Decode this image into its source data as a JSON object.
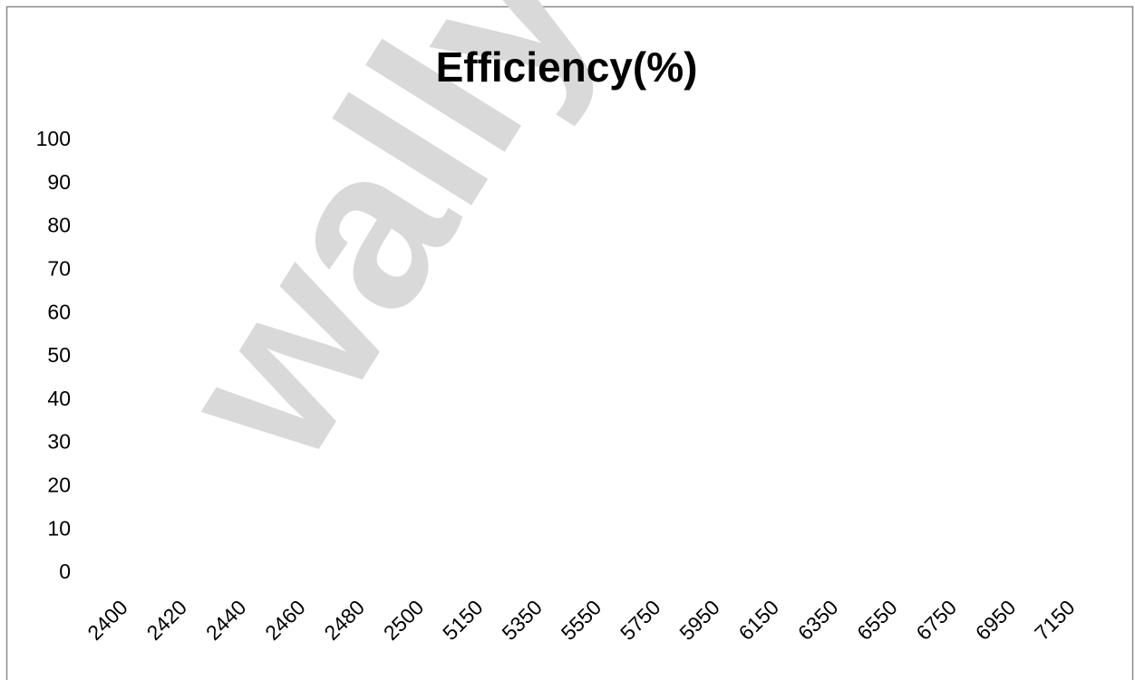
{
  "chart_data": {
    "type": "line",
    "title": "Efficiency(%)",
    "watermark": "wally",
    "categories": [
      "2400",
      "2420",
      "2440",
      "2460",
      "2480",
      "2500",
      "5150",
      "5350",
      "5550",
      "5750",
      "5950",
      "6150",
      "6350",
      "6550",
      "6750",
      "6950",
      "7150"
    ],
    "series": [],
    "ylim": [
      0,
      100
    ],
    "yticks": [
      0,
      10,
      20,
      30,
      40,
      50,
      60,
      70,
      80,
      90,
      100
    ],
    "grid": false
  }
}
